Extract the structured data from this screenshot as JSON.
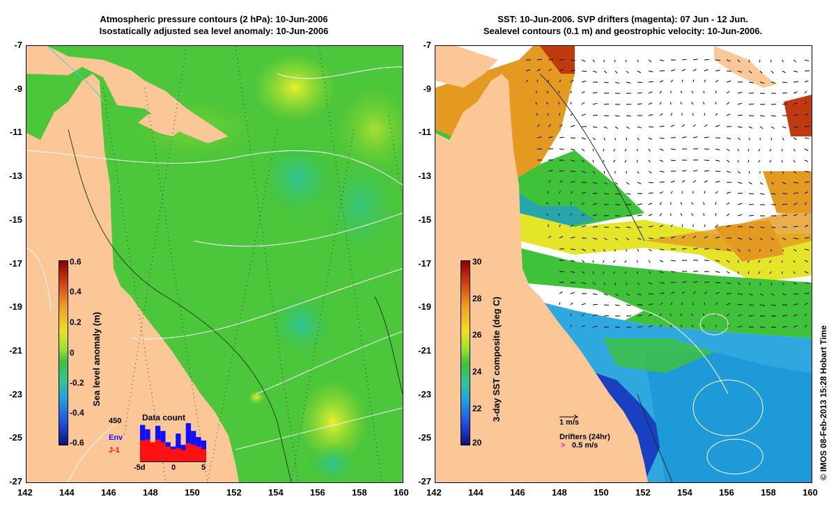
{
  "left_panel": {
    "title_line1": "Atmospheric pressure contours (2 hPa): 10-Jun-2006",
    "title_line2": "Isostatically adjusted sea level anomaly: 10-Jun-2006",
    "colorbar": {
      "label": "Sea level anomaly (m)",
      "ticks": [
        "0.6",
        "0.4",
        "0.2",
        "0",
        "-0.2",
        "-0.4",
        "-0.6"
      ]
    },
    "inset": {
      "title": "Data count",
      "max_label": "450",
      "legend_env": "Env",
      "legend_j1": "J-1",
      "x_ticks": [
        "-5d",
        "0",
        "5"
      ],
      "env_counts": [
        430,
        380,
        210,
        420,
        360,
        230,
        180,
        330,
        200,
        450,
        360,
        290,
        250
      ],
      "j1_counts": [
        250,
        260,
        230,
        260,
        230,
        180,
        150,
        160,
        140,
        220,
        200,
        180,
        150
      ],
      "colors": {
        "env": "#1010ff",
        "j1": "#ff1010"
      }
    }
  },
  "right_panel": {
    "title_line1": "SST: 10-Jun-2006. SVP drifters (magenta): 07 Jun - 12 Jun.",
    "title_line2": "Sealevel contours (0.1 m) and geostrophic velocity: 10-Jun-2006.",
    "colorbar": {
      "label": "3-day SST composite (deg C)",
      "ticks": [
        "30",
        "28",
        "26",
        "24",
        "22",
        "20"
      ]
    },
    "scale_arrow_label": "1 m/s",
    "drifters_label": "Drifters (24hr)",
    "drifters_speed": "0.5 m/s"
  },
  "axes": {
    "lat_ticks": [
      "-7",
      "-9",
      "-11",
      "-13",
      "-15",
      "-17",
      "-19",
      "-21",
      "-23",
      "-25",
      "-27"
    ],
    "lon_ticks": [
      "142",
      "144",
      "146",
      "148",
      "150",
      "152",
      "154",
      "156",
      "158",
      "160"
    ]
  },
  "copyright": "© IMOS 08-Feb-2013 15:28 Hobart Time",
  "colors": {
    "land": "#fbc797",
    "ocean_green": "#3fc23a",
    "white_cloud": "#ffffff"
  }
}
